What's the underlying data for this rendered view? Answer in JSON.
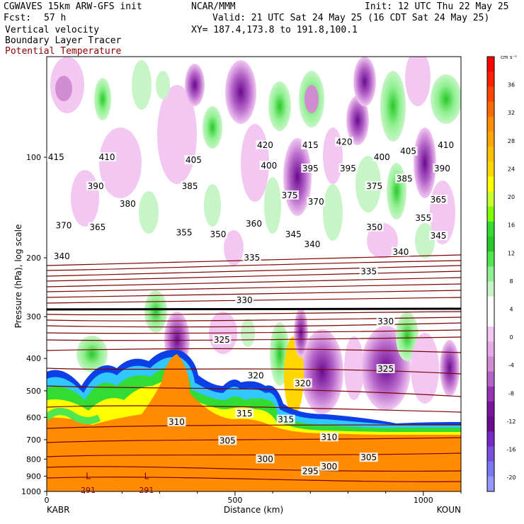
{
  "header": {
    "model": "CGWAVES 15km ARW-GFS init",
    "org": "NCAR/MMM",
    "init": "Init: 12 UTC Thu 22 May 25",
    "fcst_label": "Fcst:",
    "fcst_value": "57 h",
    "valid": "Valid: 21 UTC Sat 24 May 25 (16 CDT Sat 24 May 25)",
    "field1": "Vertical velocity",
    "field2": "Boundary Layer Tracer",
    "field3": "Potential Temperature",
    "xy": "XY= 187.4,173.8 to 191.8,100.1"
  },
  "colors": {
    "theta": "#7a0000",
    "tropopause": "#000000"
  },
  "chart_data": {
    "type": "heatmap",
    "xlabel": "Distance (km)",
    "ylabel": "Pressure (hPa), log scale",
    "x_ticks": [
      "0",
      "500",
      "1000"
    ],
    "x_tick_values": [
      0,
      500,
      1000
    ],
    "xlim": [
      0,
      1100
    ],
    "ylim": [
      1000,
      50
    ],
    "y_scale": "log",
    "y_ticks": [
      "100",
      "200",
      "300",
      "400",
      "500",
      "600",
      "700",
      "800",
      "900",
      "1000"
    ],
    "y_tick_values": [
      100,
      200,
      300,
      400,
      500,
      600,
      700,
      800,
      900,
      1000
    ],
    "left_station": "KABR",
    "right_station": "KOUN",
    "colorbar": {
      "unit": "cm s⁻¹",
      "labels": [
        "36",
        "32",
        "28",
        "24",
        "20",
        "16",
        "12",
        "8",
        "4",
        "0",
        "-4",
        "-8",
        "-12",
        "-16",
        "-20"
      ],
      "colors": [
        "#ff0000",
        "#ff2000",
        "#ff4500",
        "#ff6a00",
        "#ff8c00",
        "#ffa500",
        "#ffbf00",
        "#ffd700",
        "#ffff00",
        "#c8ff32",
        "#80ff00",
        "#32dc32",
        "#28c828",
        "#50e650",
        "#90f090",
        "#c8f5c8",
        "#ffffff",
        "#ffffff",
        "#f2c8f2",
        "#e6aae6",
        "#d28cd2",
        "#b464c8",
        "#9632b4",
        "#7a14a0",
        "#6a0a90",
        "#7828c8",
        "#7850dc",
        "#7878f0",
        "#9696ff"
      ]
    },
    "theta_labels": [
      {
        "text": "415",
        "x": 25,
        "p": 100
      },
      {
        "text": "410",
        "x": 160,
        "p": 100
      },
      {
        "text": "405",
        "x": 390,
        "p": 102
      },
      {
        "text": "420",
        "x": 580,
        "p": 92
      },
      {
        "text": "415",
        "x": 700,
        "p": 92
      },
      {
        "text": "420",
        "x": 790,
        "p": 90
      },
      {
        "text": "400",
        "x": 590,
        "p": 106
      },
      {
        "text": "395",
        "x": 700,
        "p": 108
      },
      {
        "text": "395",
        "x": 800,
        "p": 108
      },
      {
        "text": "400",
        "x": 890,
        "p": 100
      },
      {
        "text": "405",
        "x": 960,
        "p": 96
      },
      {
        "text": "410",
        "x": 1060,
        "p": 92
      },
      {
        "text": "390",
        "x": 130,
        "p": 122
      },
      {
        "text": "385",
        "x": 380,
        "p": 122
      },
      {
        "text": "375",
        "x": 645,
        "p": 130
      },
      {
        "text": "375",
        "x": 870,
        "p": 122
      },
      {
        "text": "385",
        "x": 950,
        "p": 116
      },
      {
        "text": "390",
        "x": 1050,
        "p": 108
      },
      {
        "text": "380",
        "x": 215,
        "p": 138
      },
      {
        "text": "370",
        "x": 715,
        "p": 136
      },
      {
        "text": "365",
        "x": 1040,
        "p": 134
      },
      {
        "text": "370",
        "x": 45,
        "p": 160
      },
      {
        "text": "365",
        "x": 135,
        "p": 162
      },
      {
        "text": "355",
        "x": 365,
        "p": 168
      },
      {
        "text": "350",
        "x": 455,
        "p": 170
      },
      {
        "text": "360",
        "x": 550,
        "p": 158
      },
      {
        "text": "345",
        "x": 655,
        "p": 170
      },
      {
        "text": "350",
        "x": 870,
        "p": 162
      },
      {
        "text": "355",
        "x": 1000,
        "p": 152
      },
      {
        "text": "345",
        "x": 1040,
        "p": 172
      },
      {
        "text": "340",
        "x": 40,
        "p": 198
      },
      {
        "text": "335",
        "x": 545,
        "p": 200
      },
      {
        "text": "340",
        "x": 705,
        "p": 182
      },
      {
        "text": "340",
        "x": 940,
        "p": 192
      },
      {
        "text": "335",
        "x": 855,
        "p": 220
      },
      {
        "text": "330",
        "x": 525,
        "p": 268
      },
      {
        "text": "330",
        "x": 900,
        "p": 310
      },
      {
        "text": "325",
        "x": 465,
        "p": 352
      },
      {
        "text": "325",
        "x": 900,
        "p": 430
      },
      {
        "text": "320",
        "x": 555,
        "p": 450
      },
      {
        "text": "320",
        "x": 680,
        "p": 475
      },
      {
        "text": "315",
        "x": 525,
        "p": 585
      },
      {
        "text": "315",
        "x": 635,
        "p": 610
      },
      {
        "text": "310",
        "x": 345,
        "p": 620
      },
      {
        "text": "310",
        "x": 750,
        "p": 688
      },
      {
        "text": "305",
        "x": 480,
        "p": 705
      },
      {
        "text": "305",
        "x": 855,
        "p": 792
      },
      {
        "text": "300",
        "x": 580,
        "p": 800
      },
      {
        "text": "300",
        "x": 750,
        "p": 842
      },
      {
        "text": "295",
        "x": 700,
        "p": 870
      }
    ],
    "low_labels": [
      {
        "text": "L",
        "x": 110,
        "p": 900
      },
      {
        "text": "L",
        "x": 265,
        "p": 900
      }
    ],
    "low_values": [
      {
        "text": "291",
        "x": 110,
        "p": 990
      },
      {
        "text": "291",
        "x": 265,
        "p": 990
      }
    ]
  }
}
